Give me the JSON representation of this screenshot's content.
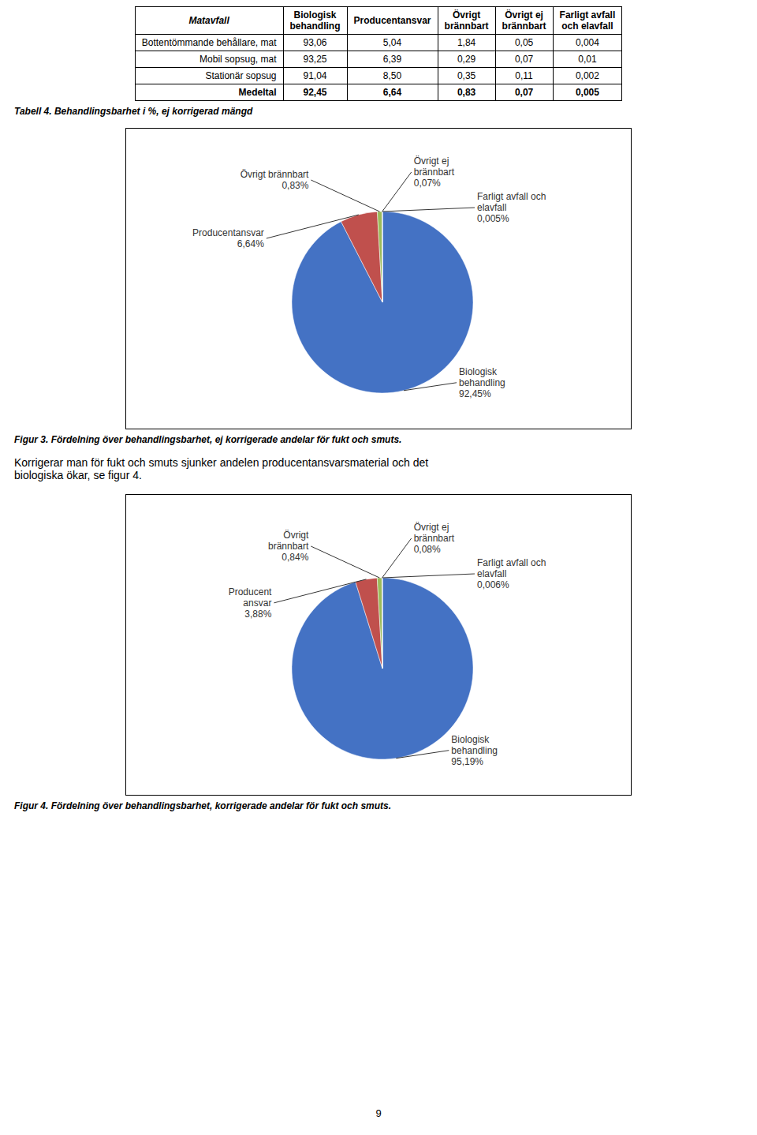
{
  "chart_data": [
    {
      "type": "table",
      "title": "Tabell 4. Behandlingsbarhet i %, ej korrigerad mängd",
      "headers": [
        "Matavfall",
        "Biologisk\nbehandling",
        "Producentansvar",
        "Övrigt\nbrännbart",
        "Övrigt ej\nbrännbart",
        "Farligt avfall\noch elavfall"
      ],
      "rows": [
        [
          "Bottentömmande behållare, mat",
          "93,06",
          "5,04",
          "1,84",
          "0,05",
          "0,004"
        ],
        [
          "Mobil sopsug, mat",
          "93,25",
          "6,39",
          "0,29",
          "0,07",
          "0,01"
        ],
        [
          "Stationär sopsug",
          "91,04",
          "8,50",
          "0,35",
          "0,11",
          "0,002"
        ],
        [
          "Medeltal",
          "92,45",
          "6,64",
          "0,83",
          "0,07",
          "0,005"
        ]
      ]
    },
    {
      "type": "pie",
      "title": "Figur 3. Fördelning över behandlingsbarhet, ej korrigerade andelar för fukt och smuts.",
      "categories": [
        "Biologisk\nbehandling",
        "Producentansvar",
        "Övrigt brännbart",
        "Övrigt ej\nbrännbart",
        "Farligt avfall och\nelavfall"
      ],
      "values": [
        92.45,
        6.64,
        0.83,
        0.07,
        0.005
      ],
      "value_labels": [
        "92,45%",
        "6,64%",
        "0,83%",
        "0,07%",
        "0,005%"
      ],
      "colors": [
        "#4472C4",
        "#C0504D",
        "#9BBB59",
        "#4472C4",
        "#4472C4"
      ]
    },
    {
      "type": "pie",
      "title": "Figur 4. Fördelning över behandlingsbarhet, korrigerade andelar för fukt och smuts.",
      "categories": [
        "Biologisk\nbehandling",
        "Producent\nansvar",
        "Övrigt\nbrännbart",
        "Övrigt ej\nbrännbart",
        "Farligt avfall och\nelavfall"
      ],
      "values": [
        95.19,
        3.88,
        0.84,
        0.08,
        0.006
      ],
      "value_labels": [
        "95,19%",
        "3,88%",
        "0,84%",
        "0,08%",
        "0,006%"
      ],
      "colors": [
        "#4472C4",
        "#C0504D",
        "#9BBB59",
        "#4472C4",
        "#4472C4"
      ]
    }
  ],
  "text": "Korrigerar man för fukt och smuts sjunker andelen producentansvarsmaterial och det\nbiologiska ökar, se figur 4.",
  "page_number": "9"
}
